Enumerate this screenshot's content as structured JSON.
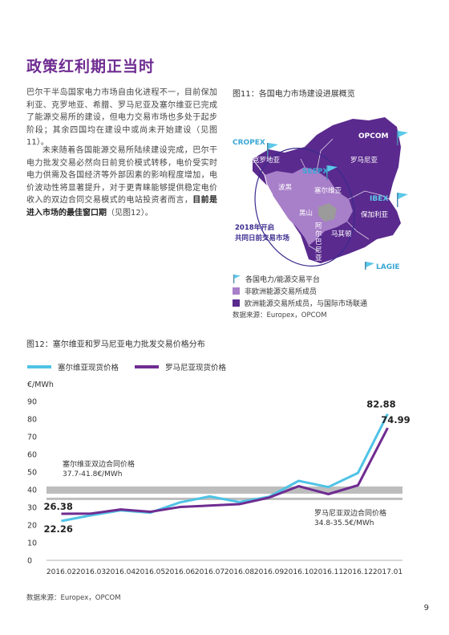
{
  "page_title": "政策红利期正当时",
  "para1": "巴尔干半岛国家电力市场自由化进程不一，目前保加利亚、克罗地亚、希腊、罗马尼亚及塞尔维亚已完成了能源交易所的建设，但电力交易市场也多处于起步阶段；其余四国均在建设中或尚未开始建设（见图11）。",
  "para2_normal": "未来随着各国能源交易所陆续建设完成，巴尔干电力批发交易必然向日前竞价模式转移，电价受实时电力供需及各国经济等外部因素的影响程度增加，电价波动性将显著提升，对于更青睐能够提供稳定电价收入的双边合同交易模式的电站投资者而言，",
  "para2_bold": "目前是进入市场的最佳窗口期",
  "para2_tail": "（见图12）。",
  "fig11": {
    "title": "图11：各国电力市场建设进展概览",
    "exchanges": [
      "CROPEX",
      "SEEPX",
      "OPCOM",
      "IBEX",
      "LAGIE"
    ],
    "countries": [
      "克罗地亚",
      "罗马尼亚",
      "波黑",
      "塞尔维亚",
      "黑山",
      "保加利亚",
      "阿",
      "尔",
      "巴",
      "尼",
      "亚",
      "马其顿",
      "希腊"
    ],
    "annotation_line1": "2018年开启",
    "annotation_line2": "共同日前交易市场",
    "legend": [
      "各国电力/能源交易平台",
      "非欧洲能源交易所成员",
      "欧洲能源交易所成员，与国际市场联通"
    ],
    "source": "数据来源：Europex，OPCOM",
    "colors": {
      "dark_purple": "#5a2a8e",
      "light_purple": "#a87fc9",
      "gray": "#9b9b9b",
      "flag": "#5bc8e8"
    }
  },
  "fig12": {
    "title": "图12：塞尔维亚和罗马尼亚电力批发交易价格分布",
    "source": "数据来源：Europex，OPCOM",
    "band_serbia": {
      "label1": "塞尔维亚双边合同价格",
      "label2": "37.7-41.8€/MWh"
    },
    "band_romania": {
      "label1": "罗马尼亚双边合同价格",
      "label2": "34.8-35.5€/MWh"
    }
  },
  "chart_data": {
    "type": "line",
    "title": "",
    "ylabel": "€/MWh",
    "xlabel": "",
    "ylim": [
      0,
      90
    ],
    "yticks": [
      "0",
      "10",
      "20",
      "30",
      "40",
      "50",
      "60",
      "70",
      "80",
      "90"
    ],
    "categories": [
      "2016.02",
      "2016.03",
      "2016.04",
      "2016.05",
      "2016.06",
      "2016.07",
      "2016.08",
      "2016.09",
      "2016.10",
      "2016.11",
      "2016.12",
      "2017.01"
    ],
    "series": [
      {
        "name": "塞尔维亚现货价格",
        "color": "#4fc3e6",
        "values": [
          22.26,
          25.5,
          28.3,
          27.0,
          32.8,
          36.2,
          33.0,
          36.0,
          45.0,
          41.5,
          49.5,
          82.88
        ]
      },
      {
        "name": "罗马尼亚现货价格",
        "color": "#6f2c91",
        "values": [
          26.38,
          26.5,
          28.8,
          27.5,
          30.2,
          31.0,
          31.8,
          35.5,
          42.0,
          37.5,
          42.5,
          74.99
        ]
      }
    ],
    "bands": [
      {
        "from": 37.7,
        "to": 41.8,
        "color": "#bdbdbd"
      },
      {
        "from": 34.8,
        "to": 35.5,
        "color": "#bdbdbd"
      }
    ],
    "data_labels": [
      {
        "text": "82.88",
        "series": 0,
        "index": 11
      },
      {
        "text": "74.99",
        "series": 1,
        "index": 11
      },
      {
        "text": "26.38",
        "series": 1,
        "index": 0
      },
      {
        "text": "22.26",
        "series": 0,
        "index": 0
      }
    ]
  },
  "page_number": "9"
}
